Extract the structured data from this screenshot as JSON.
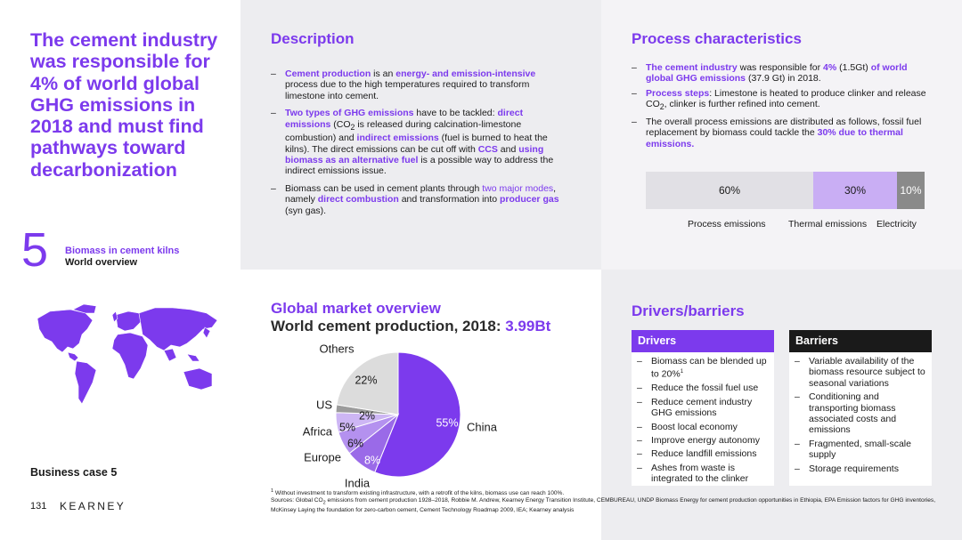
{
  "left": {
    "headline": "The cement industry was responsible for 4% of world global GHG emissions in 2018 and must find pathways toward decarbonization",
    "number": "5",
    "case_title": "Biomass in cement kilns",
    "case_sub": "World overview",
    "business_case": "Business case 5",
    "page_number": "131",
    "brand": "KEARNEY"
  },
  "description": {
    "title": "Description",
    "b1": {
      "a": "Cement production",
      "b": " is an ",
      "c": "energy- and emission-intensive",
      "d": " process due to the high temperatures required to transform limestone into cement."
    },
    "b2": {
      "a": "Two types of GHG emissions",
      "b": " have to be tackled: ",
      "c": "direct emissions",
      "d": " (CO",
      "sub": "2",
      "e": " is released during calcination-limestone combustion) and ",
      "f": "indirect emissions",
      "g": " (fuel is burned to heat the kilns). The direct emissions can be cut off with ",
      "h": "CCS",
      "i": " and ",
      "j": "using biomass as an alternative fuel",
      "k": " is a possible way to address the indirect emissions issue."
    },
    "b3": {
      "a": "Biomass can be used in cement plants through ",
      "b": "two major modes",
      "c": ", namely ",
      "d": "direct combustion",
      "e": " and transformation into ",
      "f": "producer gas",
      "g": " (syn gas)."
    }
  },
  "process": {
    "title": "Process characteristics",
    "b1": {
      "a": "The cement industry",
      "b": " was responsible for ",
      "c": "4%",
      "d": " (1.5Gt) ",
      "e": "of world global GHG emissions",
      "f": " (37.9 Gt) in 2018."
    },
    "b2": {
      "a": "Process steps",
      "b": ": Limestone is heated to produce clinker and release CO",
      "sub": "2",
      "c": ", clinker is further refined into cement."
    },
    "b3": {
      "a": "The overall process emissions are distributed as follows, fossil fuel replacement by biomass could tackle the ",
      "b": "30% due to thermal emissions."
    },
    "bar": {
      "values": [
        "60%",
        "30%",
        "10%"
      ],
      "labels": [
        "Process emissions",
        "Thermal emissions",
        "Electricity"
      ]
    }
  },
  "market": {
    "title": "Global market overview",
    "subtitle_a": "World cement production, 2018: ",
    "subtitle_b": "3.99Bt"
  },
  "chart_data": {
    "type": "pie",
    "title": "World cement production, 2018: 3.99Bt",
    "categories": [
      "China",
      "India",
      "Europe",
      "Africa",
      "US",
      "Others"
    ],
    "values": [
      55,
      8,
      6,
      5,
      2,
      22
    ],
    "value_labels": [
      "55%",
      "8%",
      "6%",
      "5%",
      "2%",
      "22%"
    ],
    "colors": [
      "#7c3aed",
      "#9a6ae8",
      "#b491ef",
      "#cdb6f4",
      "#9b9b9b",
      "#dcdcdc"
    ]
  },
  "drivers": {
    "title": "Drivers/barriers",
    "drivers_head": "Drivers",
    "barriers_head": "Barriers",
    "drivers_list": [
      "Biomass can be blended up to 20%",
      "Reduce the fossil fuel use",
      "Reduce cement industry GHG emissions",
      "Boost local economy",
      "Improve energy autonomy",
      "Reduce landfill emissions",
      "Ashes from waste is integrated to the clinker"
    ],
    "driver_sup": "1",
    "barriers_list": [
      "Variable availability of the biomass resource subject to seasonal variations",
      "Conditioning and transporting biomass associated costs and emissions",
      "Fragmented, small-scale supply",
      "Storage requirements"
    ]
  },
  "footnotes": {
    "sup": "1",
    "note1": " Without investment to transform existing infrastructure, with a retrofit of the kilns, biomass use can reach 100%.",
    "src_a": "Sources: Global CO",
    "src_sub": "2",
    "src_b": " emissions from cement production 1928–2018, Robbie M. Andrew, Kearney Energy Transition Institute, CEMBUREAU, UNDP Biomass Energy for cement production opportunities in Ethiopia, EPA Emission factors for GHG inventories, McKinsey Laying the foundation for zero-carbon cement, Cement Technology Roadmap 2009, IEA; Kearney analysis"
  }
}
